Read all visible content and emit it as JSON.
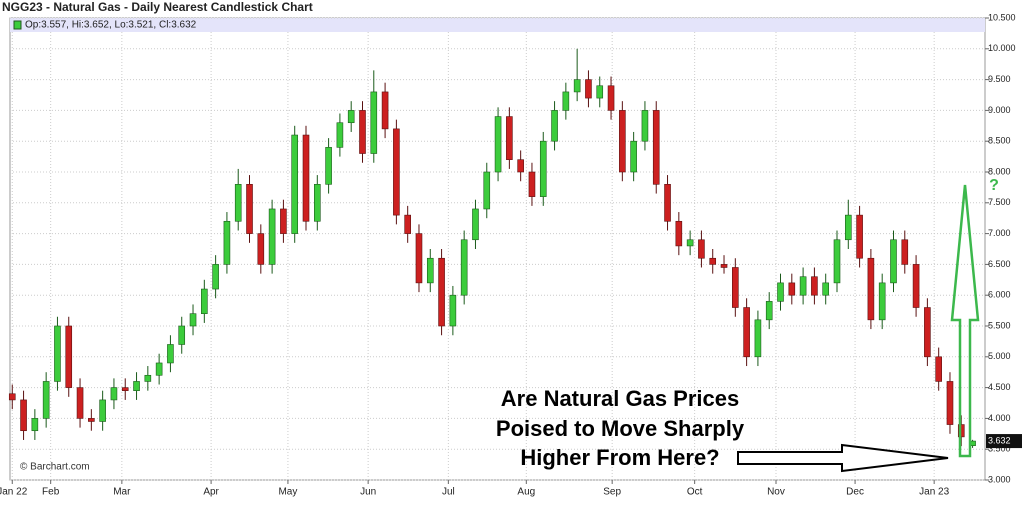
{
  "chart_data": {
    "type": "candlestick",
    "title": "NGG23 - Natural Gas - Daily Nearest Candlestick Chart",
    "legend_text": "Op:3.557, Hi:3.652, Lo:3.521, Cl:3.632",
    "watermark": "© Barchart.com",
    "annotation": [
      "Are Natural Gas Prices",
      "Poised to Move Sharply",
      "Higher From Here?"
    ],
    "annotation_mark": "?",
    "up_color": "#3ccc3c",
    "down_color": "#cc2020",
    "grid": true,
    "xlim": [
      -0.2,
      86.1
    ],
    "xticks": [
      {
        "value": 0,
        "label": "Jan 22"
      },
      {
        "value": 3.4,
        "label": "Feb"
      },
      {
        "value": 9.7,
        "label": "Mar"
      },
      {
        "value": 17.6,
        "label": "Apr"
      },
      {
        "value": 24.4,
        "label": "May"
      },
      {
        "value": 31.5,
        "label": "Jun"
      },
      {
        "value": 38.6,
        "label": "Jul"
      },
      {
        "value": 45.5,
        "label": "Aug"
      },
      {
        "value": 53.1,
        "label": "Sep"
      },
      {
        "value": 60.4,
        "label": "Oct"
      },
      {
        "value": 67.6,
        "label": "Nov"
      },
      {
        "value": 74.6,
        "label": "Dec"
      },
      {
        "value": 81.6,
        "label": "Jan 23"
      }
    ],
    "ylim": [
      3.0,
      10.5
    ],
    "yticks": [
      {
        "value": 3.0,
        "label": "3.000"
      },
      {
        "value": 3.5,
        "label": "3.500"
      },
      {
        "value": 4.0,
        "label": "4.000"
      },
      {
        "value": 4.5,
        "label": "4.500"
      },
      {
        "value": 5.0,
        "label": "5.000"
      },
      {
        "value": 5.5,
        "label": "5.500"
      },
      {
        "value": 6.0,
        "label": "6.000"
      },
      {
        "value": 6.5,
        "label": "6.500"
      },
      {
        "value": 7.0,
        "label": "7.000"
      },
      {
        "value": 7.5,
        "label": "7.500"
      },
      {
        "value": 8.0,
        "label": "8.000"
      },
      {
        "value": 8.5,
        "label": "8.500"
      },
      {
        "value": 9.0,
        "label": "9.000"
      },
      {
        "value": 9.5,
        "label": "9.500"
      },
      {
        "value": 10.0,
        "label": "10.000"
      },
      {
        "value": 10.5,
        "label": "10.500"
      }
    ],
    "open": [
      4.4,
      4.3,
      3.8,
      4.0,
      4.6,
      5.5,
      4.5,
      4.0,
      3.95,
      4.3,
      4.5,
      4.45,
      4.6,
      4.7,
      4.9,
      5.2,
      5.5,
      5.7,
      6.1,
      6.5,
      7.2,
      7.8,
      7.0,
      6.5,
      7.4,
      7.0,
      8.6,
      7.2,
      7.8,
      8.4,
      8.8,
      9.0,
      8.3,
      9.3,
      8.7,
      7.3,
      7.0,
      6.2,
      6.6,
      5.5,
      6.0,
      6.9,
      7.4,
      8.0,
      8.9,
      8.2,
      8.0,
      7.6,
      8.5,
      9.0,
      9.3,
      9.5,
      9.2,
      9.4,
      9.0,
      8.0,
      8.5,
      9.0,
      7.8,
      7.2,
      6.8,
      6.9,
      6.6,
      6.5,
      6.45,
      5.8,
      5.0,
      5.6,
      5.9,
      6.2,
      6.0,
      6.3,
      6.0,
      6.2,
      6.9,
      7.3,
      6.6,
      5.6,
      6.2,
      6.9,
      6.5,
      5.8,
      5.0,
      4.6,
      3.9,
      3.557
    ],
    "high": [
      4.55,
      4.45,
      4.15,
      4.75,
      5.65,
      5.65,
      4.65,
      4.15,
      4.45,
      4.65,
      4.65,
      4.75,
      4.85,
      5.05,
      5.35,
      5.65,
      5.85,
      6.25,
      6.65,
      7.35,
      8.05,
      7.95,
      7.15,
      7.55,
      7.55,
      8.75,
      8.75,
      7.95,
      8.55,
      8.95,
      9.15,
      9.15,
      9.65,
      9.45,
      8.85,
      7.45,
      7.15,
      6.75,
      6.75,
      6.15,
      7.05,
      7.55,
      8.15,
      9.05,
      9.05,
      8.35,
      8.15,
      8.65,
      9.15,
      9.45,
      10.0,
      9.65,
      9.55,
      9.55,
      9.15,
      8.65,
      9.15,
      9.15,
      7.95,
      7.35,
      7.05,
      7.05,
      6.75,
      6.65,
      6.6,
      5.95,
      5.75,
      6.05,
      6.35,
      6.35,
      6.45,
      6.45,
      6.35,
      7.05,
      7.55,
      7.45,
      6.75,
      6.35,
      7.05,
      7.05,
      6.65,
      5.95,
      5.15,
      4.75,
      4.05,
      3.652
    ],
    "low": [
      4.15,
      3.65,
      3.65,
      3.85,
      4.45,
      4.35,
      3.85,
      3.8,
      3.8,
      4.15,
      4.3,
      4.3,
      4.45,
      4.55,
      4.75,
      5.05,
      5.35,
      5.55,
      5.95,
      6.35,
      7.05,
      6.85,
      6.35,
      6.35,
      6.85,
      6.85,
      7.05,
      7.05,
      7.65,
      8.25,
      8.65,
      8.15,
      8.15,
      8.55,
      7.15,
      6.85,
      6.05,
      6.05,
      5.35,
      5.35,
      5.85,
      6.75,
      7.25,
      7.85,
      8.05,
      7.85,
      7.45,
      7.45,
      8.35,
      8.85,
      9.15,
      9.05,
      9.05,
      8.85,
      7.85,
      7.85,
      8.35,
      7.65,
      7.05,
      6.65,
      6.65,
      6.45,
      6.35,
      6.35,
      5.65,
      4.85,
      4.85,
      5.45,
      5.75,
      5.85,
      5.85,
      5.85,
      5.85,
      6.05,
      6.75,
      6.45,
      5.45,
      5.45,
      6.05,
      6.35,
      5.65,
      4.85,
      4.45,
      3.75,
      3.55,
      3.521
    ],
    "close": [
      4.3,
      3.8,
      4.0,
      4.6,
      5.5,
      4.5,
      4.0,
      3.95,
      4.3,
      4.5,
      4.45,
      4.6,
      4.7,
      4.9,
      5.2,
      5.5,
      5.7,
      6.1,
      6.5,
      7.2,
      7.8,
      7.0,
      6.5,
      7.4,
      7.0,
      8.6,
      7.2,
      7.8,
      8.4,
      8.8,
      9.0,
      8.3,
      9.3,
      8.7,
      7.3,
      7.0,
      6.2,
      6.6,
      5.5,
      6.0,
      6.9,
      7.4,
      8.0,
      8.9,
      8.2,
      8.0,
      7.6,
      8.5,
      9.0,
      9.3,
      9.5,
      9.2,
      9.4,
      9.0,
      8.0,
      8.5,
      9.0,
      7.8,
      7.2,
      6.8,
      6.9,
      6.6,
      6.5,
      6.45,
      5.8,
      5.0,
      5.6,
      5.9,
      6.2,
      6.0,
      6.3,
      6.0,
      6.2,
      6.9,
      7.3,
      6.6,
      5.6,
      6.2,
      6.9,
      6.5,
      5.8,
      5.0,
      4.6,
      3.9,
      3.7,
      3.632
    ]
  }
}
